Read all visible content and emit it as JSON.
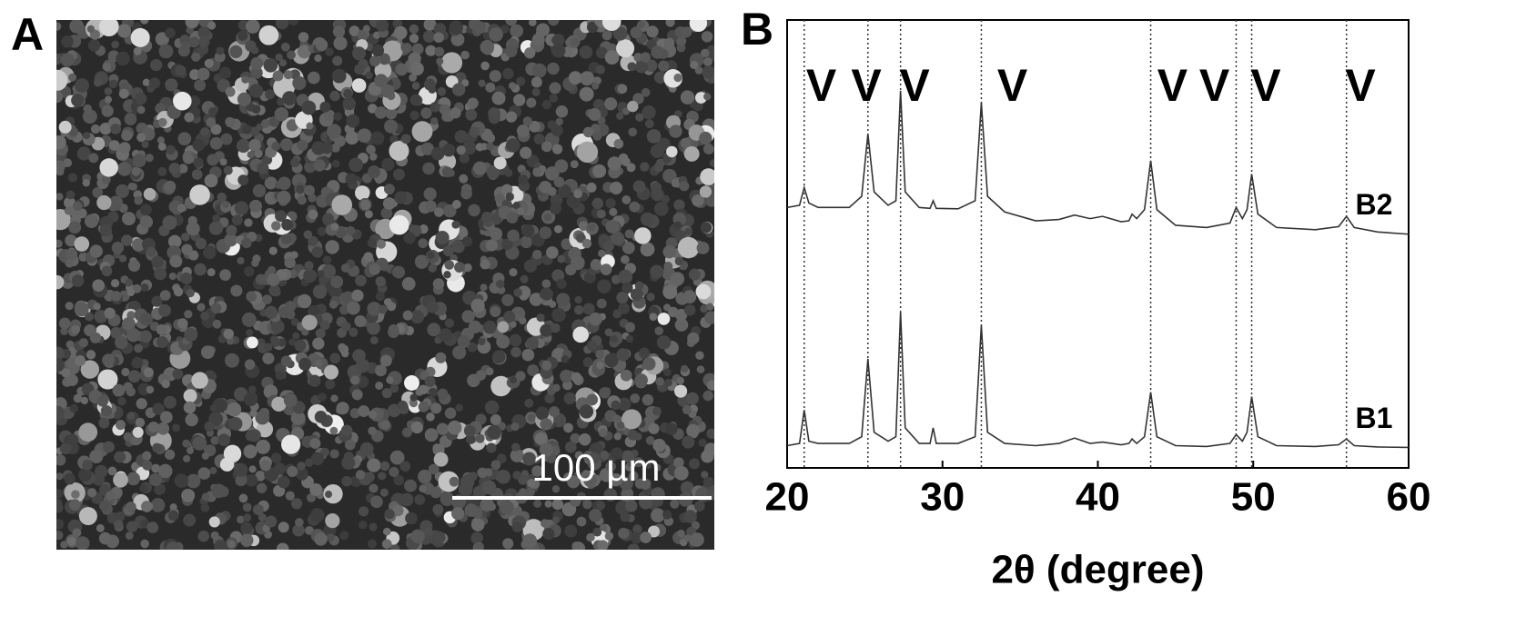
{
  "panel_labels": [
    "A",
    "B"
  ],
  "scale_bar": "100 µm",
  "chart_data": {
    "type": "line",
    "xlabel": "2θ (degree)",
    "xlim": [
      20,
      60
    ],
    "xticks": [
      20,
      30,
      40,
      50,
      60
    ],
    "ylim": [
      0,
      100
    ],
    "x": [
      20,
      20.8,
      21.1,
      21.4,
      22,
      24,
      24.8,
      25.2,
      25.6,
      26.5,
      27.0,
      27.3,
      27.6,
      28.5,
      29.2,
      29.4,
      29.6,
      31,
      32.1,
      32.5,
      32.9,
      34,
      36,
      37.5,
      38.5,
      39.5,
      40.3,
      41.5,
      42.0,
      42.2,
      42.5,
      43.0,
      43.4,
      43.8,
      45,
      47,
      48.5,
      48.9,
      49.3,
      49.6,
      49.9,
      50.3,
      51.5,
      54,
      55.5,
      56.0,
      56.5,
      58,
      60
    ],
    "series": [
      {
        "name": "B2",
        "color": "#333333",
        "values": [
          58.5,
          59,
          63,
          59.5,
          58.5,
          58.5,
          61,
          75,
          62,
          59,
          60,
          84.7,
          62,
          58.5,
          58.3,
          60,
          58.3,
          58.2,
          60,
          82,
          61,
          57.5,
          55.5,
          55.8,
          56.8,
          56,
          56.5,
          55.3,
          55.5,
          57,
          56,
          58,
          69,
          58,
          54.5,
          54,
          55,
          58.5,
          56,
          58,
          66,
          57,
          54,
          53.5,
          54.2,
          56.5,
          54,
          53,
          52.5
        ]
      },
      {
        "name": "B1",
        "color": "#333333",
        "values": [
          5,
          5.5,
          13,
          6,
          5.5,
          5.5,
          7,
          24.5,
          8,
          6,
          7,
          35,
          9,
          5.5,
          5.5,
          9,
          5.5,
          5.5,
          7,
          32,
          8,
          5.5,
          5,
          5.5,
          6.7,
          5.5,
          5.8,
          5.2,
          5.5,
          6.5,
          5.5,
          7,
          17,
          7,
          5,
          4.8,
          5.5,
          7.5,
          6,
          8,
          16,
          7,
          5,
          4.8,
          5.2,
          6.5,
          5,
          4.7,
          4.6
        ]
      }
    ],
    "reference_lines": [
      21.1,
      25.2,
      27.3,
      32.5,
      43.4,
      48.9,
      49.9,
      56.0
    ],
    "annotations": [
      {
        "text": "V",
        "x": 22.2
      },
      {
        "text": "V",
        "x": 25.1
      },
      {
        "text": "V",
        "x": 28.2
      },
      {
        "text": "V",
        "x": 34.5
      },
      {
        "text": "V",
        "x": 44.8
      },
      {
        "text": "V",
        "x": 47.5
      },
      {
        "text": "V",
        "x": 50.8
      },
      {
        "text": "V",
        "x": 56.9
      }
    ]
  }
}
